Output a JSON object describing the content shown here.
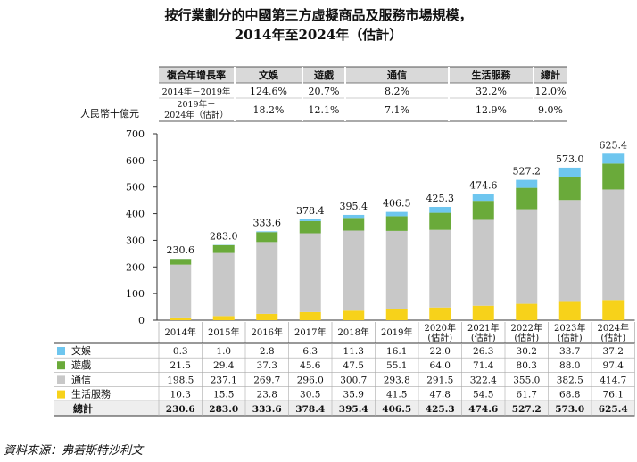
{
  "title_line1": "按行業劃分的中國第三方虛擬商品及服務市場規模，",
  "title_line2": "2014年至2024年（估計）",
  "cagr": {
    "header": "複合年增長率",
    "columns": [
      "文娛",
      "遊戲",
      "通信",
      "生活服務",
      "總計"
    ],
    "rows": [
      {
        "period": "2014年－2019年",
        "values": [
          "124.6%",
          "20.7%",
          "8.2%",
          "32.2%",
          "12.0%"
        ]
      },
      {
        "period_line1": "2019年－",
        "period_line2": "2024年（估計）",
        "values": [
          "18.2%",
          "12.1%",
          "7.1%",
          "12.9%",
          "9.0%"
        ]
      }
    ]
  },
  "unit_label": "人民幣十億元",
  "source": "資料來源：弗若斯特沙利文",
  "colors": {
    "文娛": "#6ec6ef",
    "遊戲": "#6aaa3a",
    "通信": "#c8c8c8",
    "生活服務": "#f7d21a"
  },
  "chart_data": {
    "type": "bar",
    "stacked": true,
    "ylim": [
      0,
      700
    ],
    "yticks": [
      0,
      100,
      200,
      300,
      400,
      500,
      600,
      700
    ],
    "categories": [
      {
        "line1": "2014年",
        "line2": ""
      },
      {
        "line1": "2015年",
        "line2": ""
      },
      {
        "line1": "2016年",
        "line2": ""
      },
      {
        "line1": "2017年",
        "line2": ""
      },
      {
        "line1": "2018年",
        "line2": ""
      },
      {
        "line1": "2019年",
        "line2": ""
      },
      {
        "line1": "2020年",
        "line2": "(估計)"
      },
      {
        "line1": "2021年",
        "line2": "(估計)"
      },
      {
        "line1": "2022年",
        "line2": "(估計)"
      },
      {
        "line1": "2023年",
        "line2": "(估計)"
      },
      {
        "line1": "2024年",
        "line2": "(估計)"
      }
    ],
    "series": [
      {
        "name": "生活服務",
        "values": [
          10.3,
          15.5,
          23.8,
          30.5,
          35.9,
          41.5,
          47.8,
          54.5,
          61.7,
          68.8,
          76.1
        ]
      },
      {
        "name": "通信",
        "values": [
          198.5,
          237.1,
          269.7,
          296.0,
          300.7,
          293.8,
          291.5,
          322.4,
          355.0,
          382.5,
          414.7
        ]
      },
      {
        "name": "遊戲",
        "values": [
          21.5,
          29.4,
          37.3,
          45.6,
          47.5,
          55.1,
          64.0,
          71.4,
          80.3,
          88.0,
          97.4
        ]
      },
      {
        "name": "文娛",
        "values": [
          0.3,
          1.0,
          2.8,
          6.3,
          11.3,
          16.1,
          22.0,
          26.3,
          30.2,
          33.7,
          37.2
        ]
      }
    ],
    "totals": [
      230.6,
      283.0,
      333.6,
      378.4,
      395.4,
      406.5,
      425.3,
      474.6,
      527.2,
      573.0,
      625.4
    ],
    "table_rows": [
      {
        "name": "文娛",
        "values": [
          "0.3",
          "1.0",
          "2.8",
          "6.3",
          "11.3",
          "16.1",
          "22.0",
          "26.3",
          "30.2",
          "33.7",
          "37.2"
        ]
      },
      {
        "name": "遊戲",
        "values": [
          "21.5",
          "29.4",
          "37.3",
          "45.6",
          "47.5",
          "55.1",
          "64.0",
          "71.4",
          "80.3",
          "88.0",
          "97.4"
        ]
      },
      {
        "name": "通信",
        "values": [
          "198.5",
          "237.1",
          "269.7",
          "296.0",
          "300.7",
          "293.8",
          "291.5",
          "322.4",
          "355.0",
          "382.5",
          "414.7"
        ]
      },
      {
        "name": "生活服務",
        "values": [
          "10.3",
          "15.5",
          "23.8",
          "30.5",
          "35.9",
          "41.5",
          "47.8",
          "54.5",
          "61.7",
          "68.8",
          "76.1"
        ]
      }
    ],
    "total_row": {
      "name": "總計",
      "values": [
        "230.6",
        "283.0",
        "333.6",
        "378.4",
        "395.4",
        "406.5",
        "425.3",
        "474.6",
        "527.2",
        "573.0",
        "625.4"
      ]
    }
  }
}
